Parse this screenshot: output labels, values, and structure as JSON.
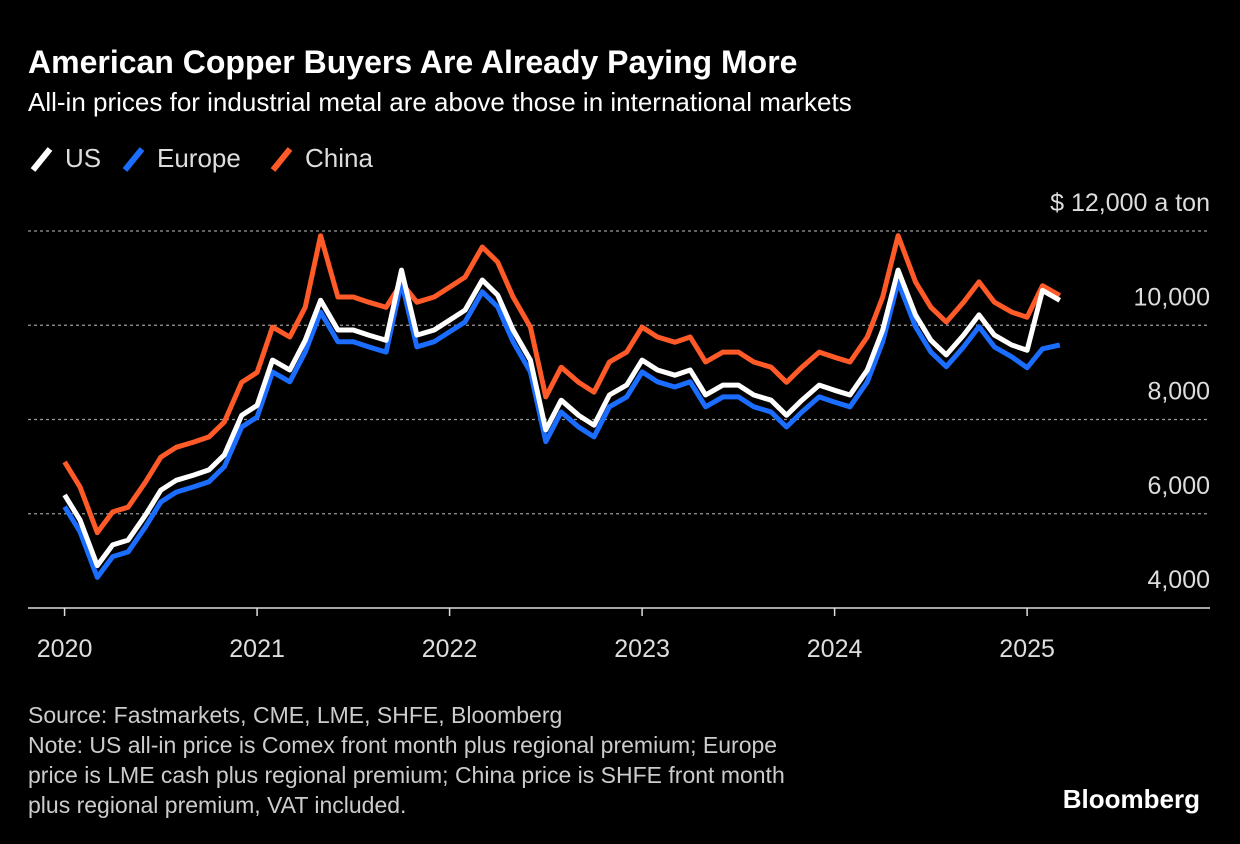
{
  "chart_data": {
    "type": "line",
    "title": "American Copper Buyers Are Already Paying More",
    "subtitle": "All-in prices for industrial metal are above those in international markets",
    "x": [
      2020,
      2020.08,
      2020.17,
      2020.25,
      2020.33,
      2020.42,
      2020.5,
      2020.58,
      2020.67,
      2020.75,
      2020.83,
      2020.92,
      2021,
      2021.08,
      2021.17,
      2021.25,
      2021.33,
      2021.42,
      2021.5,
      2021.58,
      2021.67,
      2021.75,
      2021.83,
      2021.92,
      2022,
      2022.08,
      2022.17,
      2022.25,
      2022.33,
      2022.42,
      2022.5,
      2022.58,
      2022.67,
      2022.75,
      2022.83,
      2022.92,
      2023,
      2023.08,
      2023.17,
      2023.25,
      2023.33,
      2023.42,
      2023.5,
      2023.58,
      2023.67,
      2023.75,
      2023.83,
      2023.92,
      2024,
      2024.08,
      2024.17,
      2024.25,
      2024.33,
      2024.42,
      2024.5,
      2024.58,
      2024.67,
      2024.75,
      2024.83,
      2024.92,
      2025,
      2025.08,
      2025.17
    ],
    "series": [
      {
        "name": "US",
        "color": "#ffffff",
        "values": [
          6400,
          5870,
          4900,
          5340,
          5440,
          5970,
          6500,
          6710,
          6820,
          6930,
          7250,
          8090,
          8300,
          9260,
          9050,
          9680,
          10530,
          9900,
          9900,
          9790,
          9680,
          11170,
          9790,
          9900,
          10110,
          10320,
          10960,
          10640,
          9900,
          9260,
          7780,
          8410,
          8090,
          7880,
          8520,
          8730,
          9260,
          9050,
          8940,
          9050,
          8520,
          8730,
          8730,
          8520,
          8410,
          8090,
          8410,
          8730,
          8620,
          8520,
          9050,
          9900,
          11170,
          10220,
          9680,
          9370,
          9790,
          10220,
          9790,
          9580,
          9470,
          10740,
          10530
        ]
      },
      {
        "name": "Europe",
        "color": "#1a6dff",
        "values": [
          6150,
          5620,
          4650,
          5090,
          5190,
          5720,
          6250,
          6460,
          6570,
          6680,
          7000,
          7840,
          8050,
          9010,
          8800,
          9430,
          10280,
          9650,
          9650,
          9540,
          9430,
          10920,
          9540,
          9650,
          9860,
          10070,
          10710,
          10390,
          9650,
          9010,
          7530,
          8160,
          7840,
          7630,
          8270,
          8480,
          9010,
          8800,
          8690,
          8800,
          8270,
          8480,
          8480,
          8270,
          8160,
          7840,
          8160,
          8480,
          8370,
          8270,
          8800,
          9650,
          10920,
          9970,
          9430,
          9120,
          9540,
          9970,
          9540,
          9330,
          9100,
          9500,
          9580
        ]
      },
      {
        "name": "China",
        "color": "#ff5a28",
        "values": [
          7100,
          6570,
          5600,
          6040,
          6140,
          6670,
          7200,
          7410,
          7520,
          7630,
          7950,
          8790,
          9000,
          9960,
          9750,
          10380,
          11900,
          10600,
          10600,
          10490,
          10380,
          10900,
          10490,
          10600,
          10810,
          11020,
          11660,
          11340,
          10600,
          9960,
          8480,
          9110,
          8790,
          8580,
          9220,
          9430,
          9960,
          9750,
          9640,
          9750,
          9220,
          9430,
          9430,
          9220,
          9110,
          8790,
          9110,
          9430,
          9320,
          9220,
          9750,
          10600,
          11900,
          10920,
          10380,
          10070,
          10490,
          10920,
          10490,
          10280,
          10170,
          10840,
          10630
        ]
      }
    ],
    "xlim": [
      2019.81,
      2025.95
    ],
    "xticks": [
      2020,
      2021,
      2022,
      2023,
      2024,
      2025
    ],
    "ylim": [
      4000,
      12000
    ],
    "yticks": [
      {
        "value": 4000,
        "label": "4,000"
      },
      {
        "value": 6000,
        "label": "6,000"
      },
      {
        "value": 8000,
        "label": "8,000"
      },
      {
        "value": 10000,
        "label": "10,000"
      },
      {
        "value": 12000,
        "label": "$ 12,000 a ton"
      }
    ],
    "grid": true
  },
  "footer": {
    "lines": [
      "Source: Fastmarkets, CME, LME, SHFE, Bloomberg",
      "Note: US all-in price is Comex front month plus regional premium; Europe",
      "price is LME cash plus regional premium; China price is SHFE front month",
      "plus regional premium, VAT included."
    ],
    "brand": "Bloomberg"
  }
}
